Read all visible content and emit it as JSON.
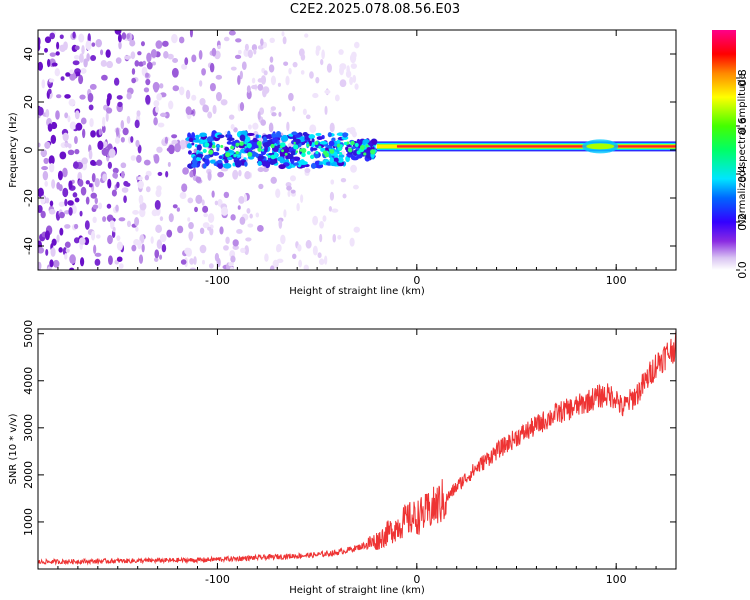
{
  "title": "C2E2.2025.078.08.56.E03",
  "chart_data": [
    {
      "type": "heatmap",
      "xlabel": "Height of straight line (km)",
      "ylabel": "Frequency (Hz)",
      "xlim": [
        -190,
        130
      ],
      "ylim": [
        -50,
        50
      ],
      "xticks": [
        -100,
        0,
        100
      ],
      "yticks": [
        -40,
        -20,
        0,
        20,
        40
      ],
      "colorbar": {
        "label": "Normalized spectral amplitude",
        "range": [
          0,
          1
        ],
        "ticks": [
          "0.0",
          "0.2",
          "0.4",
          "0.6",
          "0.8"
        ],
        "tick_values": [
          0.0,
          0.2,
          0.4,
          0.6,
          0.8
        ],
        "colormap": "rainbow (white-purple-blue-cyan-green-yellow-red-magenta)"
      },
      "features": {
        "noise_region_x": [
          -190,
          -30
        ],
        "signal_band_frequency_hz": 1.5,
        "signal_band_x": [
          -115,
          130
        ],
        "strong_signal_x": [
          -20,
          130
        ]
      }
    },
    {
      "type": "line",
      "xlabel": "Height of straight line (km)",
      "ylabel": "SNR (10 * v/v)",
      "xlim": [
        -190,
        130
      ],
      "ylim": [
        0,
        5100
      ],
      "xticks": [
        -100,
        0,
        100
      ],
      "yticks": [
        1000,
        2000,
        3000,
        4000,
        5000
      ],
      "series": [
        {
          "color": "#ee3333",
          "x": [
            -190,
            -170,
            -150,
            -130,
            -110,
            -90,
            -70,
            -50,
            -40,
            -30,
            -20,
            -15,
            -10,
            -5,
            0,
            5,
            10,
            15,
            20,
            25,
            30,
            40,
            50,
            60,
            70,
            80,
            85,
            90,
            95,
            100,
            103,
            105,
            110,
            115,
            120,
            125,
            130
          ],
          "y": [
            150,
            160,
            170,
            180,
            190,
            220,
            260,
            300,
            350,
            450,
            600,
            750,
            900,
            1050,
            1100,
            1200,
            1350,
            1500,
            1750,
            1950,
            2150,
            2500,
            2800,
            3050,
            3300,
            3450,
            3550,
            3650,
            3700,
            3650,
            3400,
            3500,
            3700,
            4000,
            4350,
            4550,
            4750
          ]
        }
      ]
    }
  ]
}
